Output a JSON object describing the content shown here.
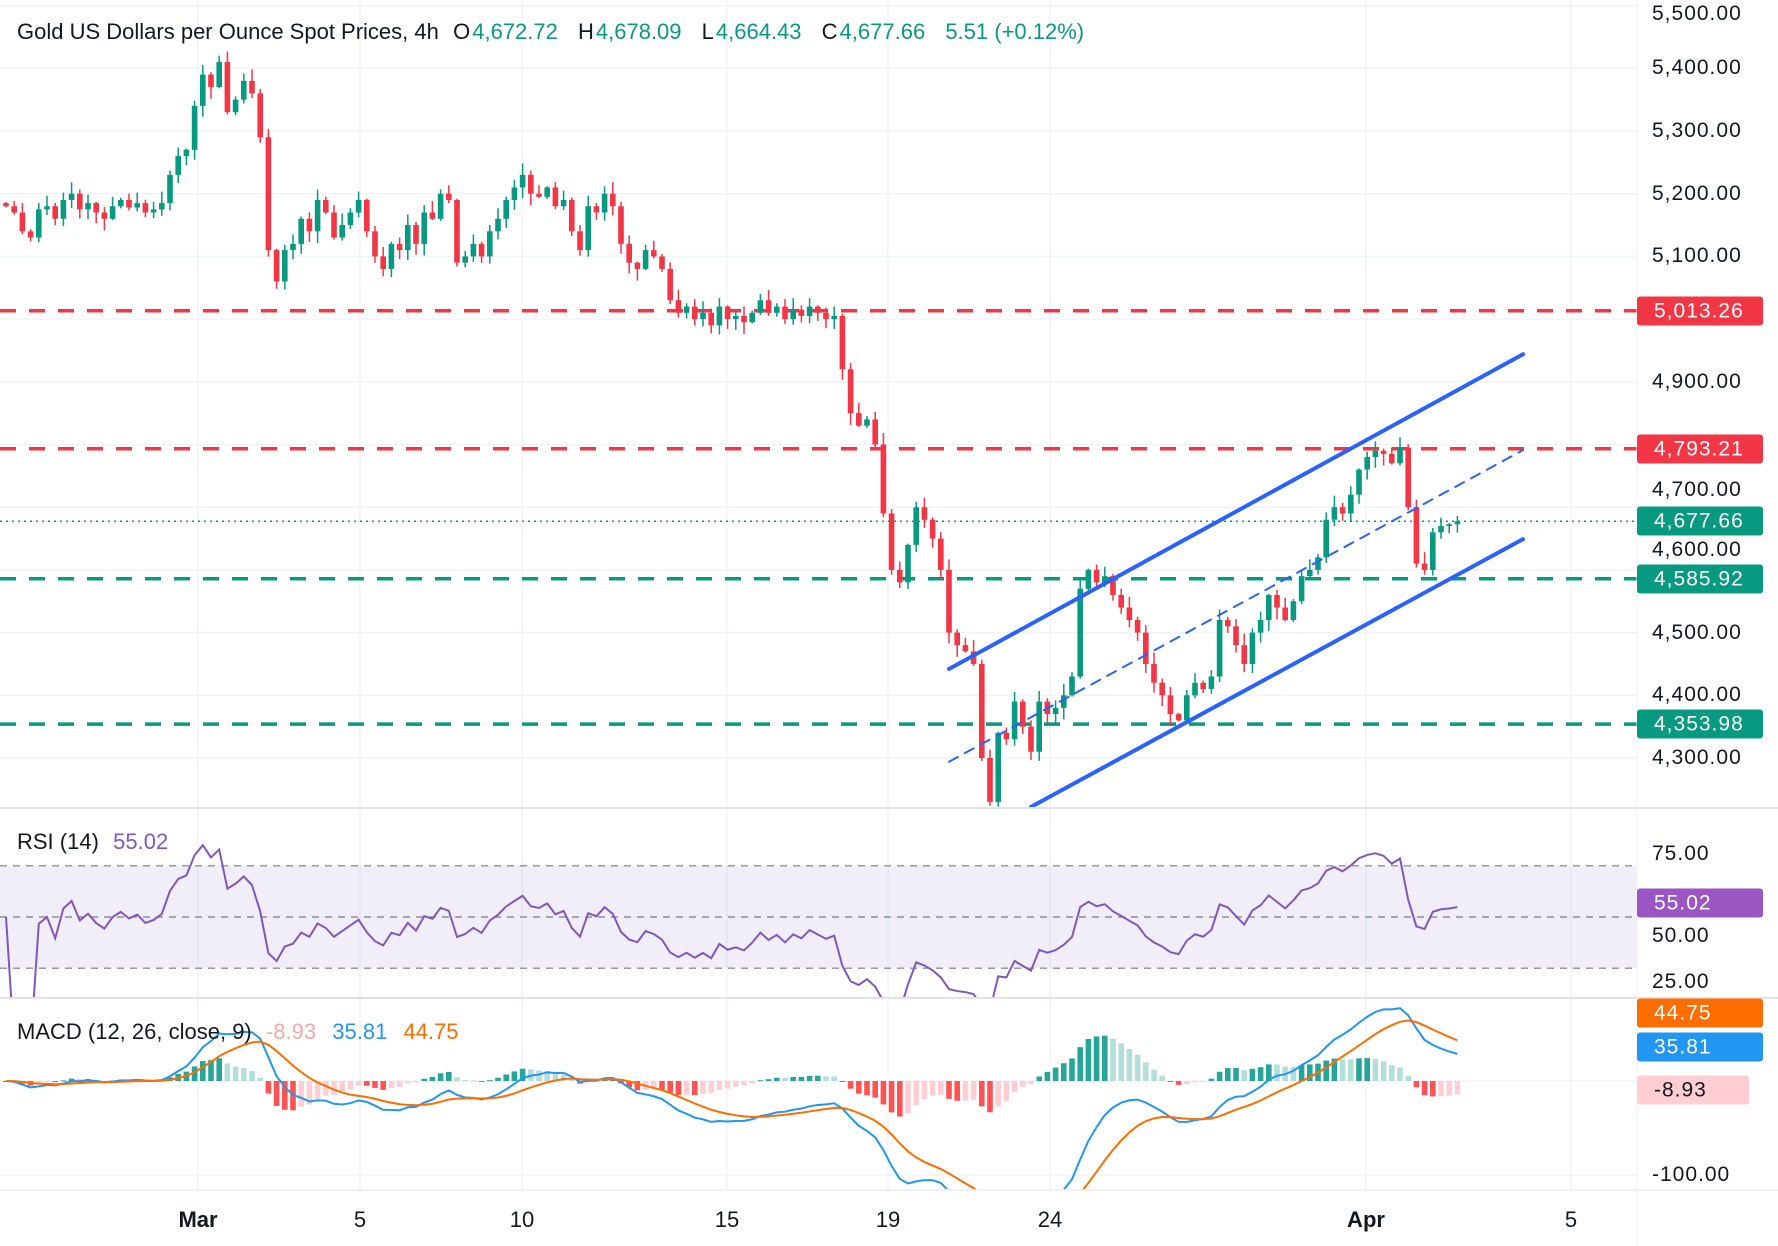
{
  "header": {
    "title": "Gold US Dollars per Ounce Spot Prices, 4h",
    "o_label": "O",
    "o_value": "4,672.72",
    "h_label": "H",
    "h_value": "4,678.09",
    "l_label": "L",
    "l_value": "4,664.43",
    "c_label": "C",
    "c_value": "4,677.66",
    "change": "5.51 (+0.12%)"
  },
  "colors": {
    "up": "#089981",
    "down": "#f23645",
    "trendline": "#2962ff",
    "rsi": "#7e57c2",
    "macd": "#2196f3",
    "signal": "#ff6d00"
  },
  "price_axis": [
    "5,500.00",
    "5,400.00",
    "5,300.00",
    "5,200.00",
    "5,100.00",
    "4,900.00",
    "4,700.00",
    "4,600.00",
    "4,500.00",
    "4,400.00",
    "4,300.00"
  ],
  "levels": [
    {
      "price": 5013.26,
      "label": "5,013.26",
      "color": "#f23645"
    },
    {
      "price": 4793.21,
      "label": "4,793.21",
      "color": "#f23645"
    },
    {
      "price": 4585.92,
      "label": "4,585.92",
      "color": "#089981"
    },
    {
      "price": 4353.98,
      "label": "4,353.98",
      "color": "#089981"
    }
  ],
  "last_price": {
    "price": 4677.66,
    "label": "4,677.66"
  },
  "rsi": {
    "title": "RSI (14)",
    "value": "55.02",
    "axis": [
      "75.00",
      "50.00",
      "25.00"
    ],
    "upper": 70,
    "lower": 30
  },
  "macd": {
    "title": "MACD (12, 26, close, 9)",
    "hist": "-8.93",
    "macd": "35.81",
    "signal": "44.75",
    "axis": [
      "-100.00"
    ]
  },
  "time_axis": [
    "Mar",
    "5",
    "10",
    "15",
    "19",
    "24",
    "Apr",
    "5"
  ],
  "chart_data": {
    "type": "candlestick",
    "title": "Gold US Dollars per Ounce Spot Prices, 4h",
    "ylim": [
      4230,
      5500
    ],
    "grid": true,
    "closes": [
      5180,
      5170,
      5140,
      5130,
      5175,
      5180,
      5160,
      5190,
      5200,
      5175,
      5185,
      5170,
      5160,
      5180,
      5190,
      5178,
      5185,
      5170,
      5175,
      5185,
      5230,
      5260,
      5270,
      5340,
      5390,
      5370,
      5410,
      5330,
      5350,
      5380,
      5360,
      5290,
      5110,
      5060,
      5110,
      5120,
      5160,
      5140,
      5190,
      5170,
      5130,
      5150,
      5170,
      5190,
      5140,
      5100,
      5080,
      5120,
      5110,
      5150,
      5120,
      5170,
      5160,
      5200,
      5190,
      5090,
      5100,
      5120,
      5100,
      5140,
      5160,
      5190,
      5210,
      5230,
      5200,
      5195,
      5210,
      5180,
      5190,
      5140,
      5110,
      5180,
      5170,
      5200,
      5180,
      5120,
      5090,
      5080,
      5110,
      5100,
      5080,
      5030,
      5010,
      5020,
      5000,
      5010,
      4990,
      5020,
      5000,
      5005,
      4995,
      5010,
      5030,
      5010,
      5020,
      5000,
      5015,
      5005,
      5020,
      5010,
      5000,
      5005,
      4920,
      4850,
      4830,
      4840,
      4800,
      4690,
      4600,
      4580,
      4640,
      4700,
      4680,
      4650,
      4600,
      4500,
      4480,
      4470,
      4450,
      4300,
      4230,
      4340,
      4330,
      4390,
      4350,
      4310,
      4390,
      4370,
      4380,
      4400,
      4430,
      4570,
      4600,
      4580,
      4590,
      4560,
      4540,
      4520,
      4500,
      4450,
      4420,
      4400,
      4370,
      4360,
      4400,
      4420,
      4410,
      4430,
      4520,
      4510,
      4480,
      4450,
      4500,
      4520,
      4560,
      4540,
      4520,
      4550,
      4590,
      4600,
      4620,
      4680,
      4700,
      4690,
      4720,
      4760,
      4780,
      4790,
      4785,
      4770,
      4795,
      4700,
      4610,
      4600,
      4660,
      4670,
      4672.72,
      4677.66
    ],
    "channel": {
      "upper": [
        [
          115,
          4442
        ],
        [
          185,
          4944
        ]
      ],
      "middle": [
        [
          115,
          4294
        ],
        [
          185,
          4791
        ]
      ],
      "lower": [
        [
          125,
          4222
        ],
        [
          185,
          4649
        ]
      ]
    }
  }
}
